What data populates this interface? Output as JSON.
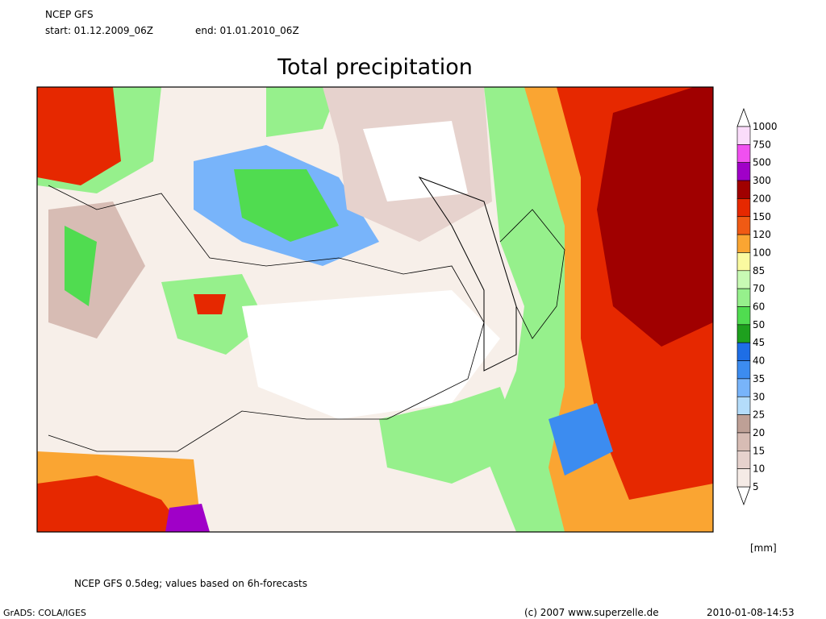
{
  "header": {
    "model": "NCEP GFS",
    "start": "start: 01.12.2009_06Z",
    "end": "end: 01.01.2010_06Z",
    "title": "Total precipitation"
  },
  "legend": {
    "levels": [
      1000,
      750,
      500,
      300,
      200,
      150,
      120,
      100,
      85,
      70,
      60,
      50,
      45,
      40,
      35,
      30,
      25,
      20,
      15,
      10,
      5
    ],
    "colors": [
      "#fadcfa",
      "#f050f0",
      "#a000c8",
      "#a00000",
      "#e62800",
      "#f05a14",
      "#faa532",
      "#fafaa0",
      "#c8fab4",
      "#96f08c",
      "#50dc50",
      "#1ea01e",
      "#1e6ee6",
      "#3c8cf0",
      "#78b4fa",
      "#b4dcfa",
      "#bea096",
      "#d7bcb4",
      "#e6d2cd",
      "#f5ebe6"
    ],
    "unit": "[mm]"
  },
  "footer": {
    "note": "NCEP GFS 0.5deg; values based on 6h-forecasts",
    "software": "GrADS: COLA/IGES",
    "copyright": "(c) 2007 www.superzelle.de",
    "timestamp": "2010-01-08-14:53"
  }
}
